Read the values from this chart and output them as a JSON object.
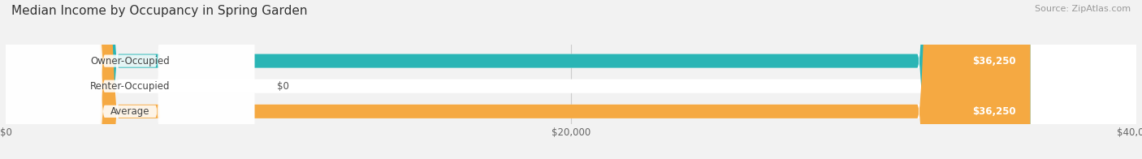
{
  "title": "Median Income by Occupancy in Spring Garden",
  "source": "Source: ZipAtlas.com",
  "categories": [
    "Owner-Occupied",
    "Renter-Occupied",
    "Average"
  ],
  "values": [
    36250,
    0,
    36250
  ],
  "bar_colors": [
    "#2ab5b5",
    "#b8a0cc",
    "#f5a942"
  ],
  "bar_labels": [
    "$36,250",
    "$0",
    "$36,250"
  ],
  "xlim": [
    0,
    40000
  ],
  "xticks": [
    0,
    20000,
    40000
  ],
  "xtick_labels": [
    "$0",
    "$20,000",
    "$40,000"
  ],
  "background_color": "#f2f2f2",
  "title_fontsize": 11,
  "label_fontsize": 8.5,
  "source_fontsize": 8,
  "tick_fontsize": 8.5
}
